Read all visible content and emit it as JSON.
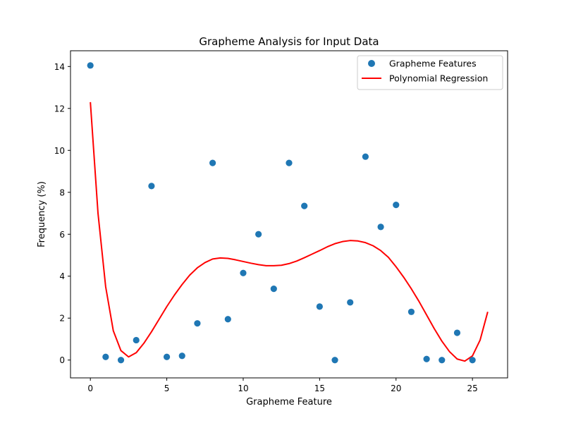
{
  "chart_data": {
    "type": "scatter",
    "title": "Grapheme Analysis for Input Data",
    "xlabel": "Grapheme Feature",
    "ylabel": "Frequency (%)",
    "xlim": [
      -1.3,
      27.3
    ],
    "ylim": [
      -0.85,
      14.75
    ],
    "xticks": [
      0,
      5,
      10,
      15,
      20,
      25
    ],
    "yticks": [
      0,
      2,
      4,
      6,
      8,
      10,
      12,
      14
    ],
    "grid": false,
    "legend_position": "top-right",
    "series": [
      {
        "name": "Grapheme Features",
        "kind": "scatter",
        "color": "#1f77b4",
        "x": [
          0,
          1,
          2,
          3,
          4,
          5,
          6,
          7,
          8,
          9,
          10,
          11,
          12,
          13,
          14,
          15,
          16,
          17,
          18,
          19,
          20,
          21,
          22,
          23,
          24,
          25
        ],
        "y": [
          14.05,
          0.15,
          0.0,
          0.95,
          8.3,
          0.15,
          0.2,
          1.75,
          9.4,
          1.95,
          4.15,
          6.0,
          3.4,
          9.4,
          7.35,
          2.55,
          0.0,
          2.75,
          9.7,
          6.35,
          7.4,
          2.3,
          0.05,
          0.0,
          1.3,
          0.0
        ]
      },
      {
        "name": "Polynomial Regression",
        "kind": "line",
        "color": "#ff0000",
        "x": [
          0,
          0.5,
          1,
          1.5,
          2,
          2.5,
          3,
          3.5,
          4,
          4.5,
          5,
          5.5,
          6,
          6.5,
          7,
          7.5,
          8,
          8.5,
          9,
          9.5,
          10,
          10.5,
          11,
          11.5,
          12,
          12.5,
          13,
          13.5,
          14,
          14.5,
          15,
          15.5,
          16,
          16.5,
          17,
          17.5,
          18,
          18.5,
          19,
          19.5,
          20,
          20.5,
          21,
          21.5,
          22,
          22.5,
          23,
          23.5,
          24,
          24.5,
          25,
          25.5,
          26
        ],
        "y": [
          12.3,
          7.0,
          3.5,
          1.4,
          0.45,
          0.15,
          0.35,
          0.8,
          1.35,
          1.95,
          2.55,
          3.1,
          3.6,
          4.05,
          4.4,
          4.65,
          4.82,
          4.87,
          4.85,
          4.78,
          4.7,
          4.62,
          4.55,
          4.5,
          4.5,
          4.52,
          4.6,
          4.72,
          4.88,
          5.05,
          5.22,
          5.4,
          5.55,
          5.65,
          5.7,
          5.68,
          5.6,
          5.45,
          5.22,
          4.9,
          4.45,
          3.95,
          3.4,
          2.8,
          2.15,
          1.5,
          0.9,
          0.4,
          0.05,
          -0.05,
          0.2,
          0.95,
          2.3
        ]
      }
    ]
  }
}
